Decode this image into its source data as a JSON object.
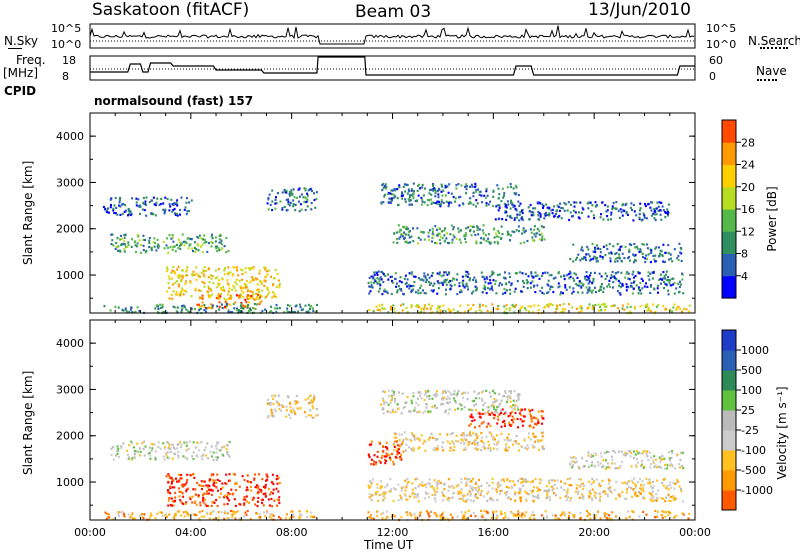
{
  "header": {
    "station": "Saskatoon (fitACF)",
    "beam": "Beam 03",
    "date": "13/Jun/2010"
  },
  "strips": {
    "nsky_label": "N.Sky",
    "nsearch_label": "N.Search",
    "nsky_ticks": [
      "10^5",
      "10^0"
    ],
    "nsearch_ticks": [
      "10^5",
      "10^0"
    ],
    "freq_label": "Freq.",
    "freq_unit": "[MHz]",
    "freq_ticks": [
      "18",
      "8"
    ],
    "nave_label": "Nave",
    "nave_ticks": [
      "60",
      "0"
    ],
    "cpid_label": "CPID",
    "cpid_text": "normalsound (fast) 157"
  },
  "colors": {
    "power": [
      "#0000ff",
      "#2a5fb5",
      "#2f8f5f",
      "#55b84a",
      "#b8dd20",
      "#ffd000",
      "#ff9a00",
      "#ff4a00",
      "#ff0000"
    ],
    "velocity": [
      "#ff0000",
      "#ff5a00",
      "#ff9a00",
      "#ffc020",
      "#cccccc",
      "#bbbbbb",
      "#60c040",
      "#2e8b57",
      "#2a5fb5",
      "#1e3cc8"
    ]
  },
  "chart_data": [
    {
      "type": "heatmap",
      "name": "power",
      "ylabel": "Slant Range [km]",
      "yticks": [
        "1000",
        "2000",
        "3000",
        "4000"
      ],
      "ylim": [
        180,
        4500
      ],
      "xlim": [
        0,
        24
      ],
      "colorbar_label": "Power [dB]",
      "colorbar_ticks": [
        "4",
        "8",
        "12",
        "16",
        "20",
        "24",
        "28"
      ],
      "colorbar_range": [
        0,
        32
      ],
      "data_gap_hours": [
        9.1,
        10.9
      ],
      "echo_bands": [
        {
          "t0": 0.8,
          "t1": 5.5,
          "r0": 1500,
          "r1": 1900,
          "level": 12
        },
        {
          "t0": 0.5,
          "t1": 4.0,
          "r0": 2300,
          "r1": 2700,
          "level": 6
        },
        {
          "t0": 3.0,
          "t1": 7.5,
          "r0": 500,
          "r1": 1200,
          "level": 22
        },
        {
          "t0": 4.2,
          "t1": 6.8,
          "r0": 300,
          "r1": 600,
          "level": 27
        },
        {
          "t0": 0.5,
          "t1": 9.0,
          "r0": 200,
          "r1": 400,
          "level": 10
        },
        {
          "t0": 7.0,
          "t1": 9.0,
          "r0": 2400,
          "r1": 2900,
          "level": 8
        },
        {
          "t0": 11.0,
          "t1": 23.8,
          "r0": 200,
          "r1": 400,
          "level": 20
        },
        {
          "t0": 11.0,
          "t1": 23.5,
          "r0": 600,
          "r1": 1100,
          "level": 7
        },
        {
          "t0": 12.0,
          "t1": 18.0,
          "r0": 1700,
          "r1": 2100,
          "level": 11
        },
        {
          "t0": 16.0,
          "t1": 23.0,
          "r0": 2200,
          "r1": 2600,
          "level": 6
        },
        {
          "t0": 11.5,
          "t1": 17.0,
          "r0": 2500,
          "r1": 3000,
          "level": 8
        },
        {
          "t0": 19.0,
          "t1": 23.5,
          "r0": 1300,
          "r1": 1700,
          "level": 7
        }
      ]
    },
    {
      "type": "heatmap",
      "name": "velocity",
      "ylabel": "Slant Range [km]",
      "yticks": [
        "1000",
        "2000",
        "3000",
        "4000"
      ],
      "ylim": [
        180,
        4500
      ],
      "xlim": [
        0,
        24
      ],
      "xticks": [
        "00:00",
        "04:00",
        "08:00",
        "12:00",
        "16:00",
        "20:00",
        "00:00"
      ],
      "xlabel": "Time UT",
      "colorbar_label": "Velocity [m s⁻¹]",
      "colorbar_ticks": [
        "-1000",
        "-500",
        "-100",
        "-25",
        "25",
        "100",
        "500",
        "1000"
      ],
      "data_gap_hours": [
        9.1,
        10.9
      ],
      "echo_bands": [
        {
          "t0": 0.8,
          "t1": 5.5,
          "r0": 1500,
          "r1": 1900,
          "level": 5
        },
        {
          "t0": 3.0,
          "t1": 7.5,
          "r0": 500,
          "r1": 1200,
          "level": 1
        },
        {
          "t0": 0.5,
          "t1": 9.0,
          "r0": 200,
          "r1": 400,
          "level": 3
        },
        {
          "t0": 7.0,
          "t1": 9.0,
          "r0": 2400,
          "r1": 2900,
          "level": 4
        },
        {
          "t0": 11.0,
          "t1": 23.8,
          "r0": 200,
          "r1": 400,
          "level": 3
        },
        {
          "t0": 11.0,
          "t1": 23.5,
          "r0": 600,
          "r1": 1100,
          "level": 4
        },
        {
          "t0": 12.0,
          "t1": 18.0,
          "r0": 1700,
          "r1": 2100,
          "level": 4
        },
        {
          "t0": 15.0,
          "t1": 18.0,
          "r0": 2200,
          "r1": 2600,
          "level": 1
        },
        {
          "t0": 11.0,
          "t1": 12.5,
          "r0": 1400,
          "r1": 1900,
          "level": 1
        },
        {
          "t0": 11.5,
          "t1": 17.0,
          "r0": 2500,
          "r1": 3000,
          "level": 5
        },
        {
          "t0": 19.0,
          "t1": 23.5,
          "r0": 1300,
          "r1": 1700,
          "level": 5
        }
      ]
    }
  ]
}
